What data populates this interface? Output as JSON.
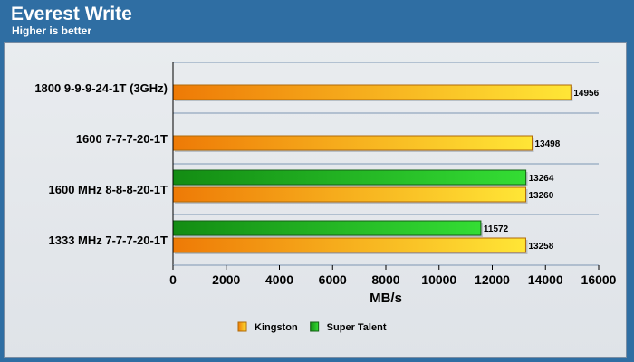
{
  "title": "Everest Write",
  "subtitle": "Higher is better",
  "colors": {
    "kingston": "#f5a018",
    "super_talent": "#22b322",
    "background": "#2f6ea3"
  },
  "chart_data": {
    "type": "bar",
    "orientation": "horizontal",
    "categories": [
      "1800 9-9-9-24-1T (3GHz)",
      "1600 7-7-7-20-1T",
      "1600 MHz 8-8-8-20-1T",
      "1333 MHz 7-7-7-20-1T"
    ],
    "series": [
      {
        "name": "Kingston",
        "values": [
          14956,
          13498,
          13260,
          13258
        ]
      },
      {
        "name": "Super Talent",
        "values": [
          null,
          null,
          13264,
          11572
        ]
      }
    ],
    "data_labels": [
      [
        "14956",
        "13498",
        "13260",
        "13258"
      ],
      [
        null,
        null,
        "13264",
        "11572"
      ]
    ],
    "xlabel": "MB/s",
    "ylabel": "",
    "xlim": [
      0,
      16000
    ],
    "xticks": [
      0,
      2000,
      4000,
      6000,
      8000,
      10000,
      12000,
      14000,
      16000
    ],
    "xtick_labels": [
      "0",
      "2000",
      "4000",
      "6000",
      "8000",
      "10000",
      "12000",
      "14000",
      "16000"
    ],
    "grid": "horizontal category separators",
    "legend": "bottom-center"
  }
}
